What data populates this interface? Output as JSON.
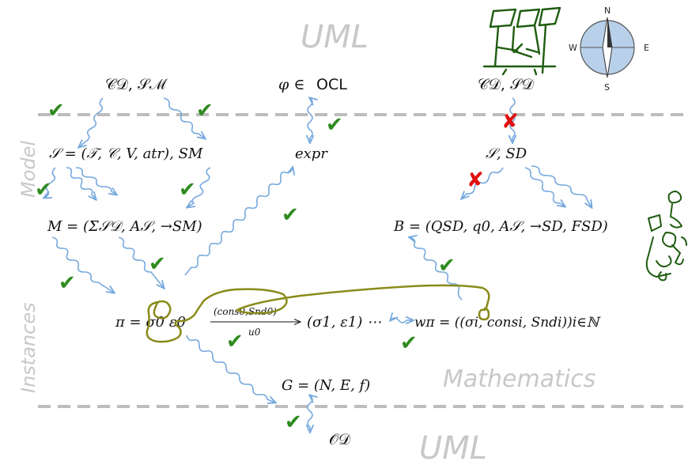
{
  "labels": {
    "uml_top": "UML",
    "uml_bottom": "UML",
    "model": "Model",
    "instances": "Instances",
    "mathematics": "Mathematics"
  },
  "nodes": {
    "cd_sm": "𝒞𝒟, 𝒮ℳ",
    "phi_ocl_phi": "φ ∈",
    "phi_ocl_ocl": "OCL",
    "cd_sd": "𝒞𝒟, 𝒮𝒟",
    "signature": "𝒮 = (𝒯, 𝒞, V, atr), SM",
    "expr": "expr",
    "sig_sd": "𝒮, SD",
    "m_struct": "M = (Σ𝒮𝒟, A𝒮, →SM)",
    "b_struct": "B = (QSD, q0, A𝒮, →SD, FSD)",
    "pi_run": "π = σ0 ε0",
    "run_tail": "(σ1, ε1) ⋯",
    "arrow_label_top": "(cons0,Snd0)",
    "arrow_label_bottom": "u0",
    "w_pi": "wπ = ((σi, consi, Sndi))i∈ℕ",
    "g_graph": "G = (N, E, f)",
    "od": "𝒪𝒟"
  },
  "compass": {
    "n": "N",
    "e": "E",
    "s": "S",
    "w": "W"
  },
  "colors": {
    "dashed_rule": "#bdbdbd",
    "big_label": "#c8c8c8",
    "wiggle_arrow": "#76a9dd",
    "check": "#2e8b1e",
    "cross": "#e01010",
    "olive_loop": "#8a8a1a",
    "doodle_green": "#1f5c10",
    "compass_fill": "#b8d0ea"
  },
  "icons": {
    "check": "✔",
    "cross": "✘"
  }
}
